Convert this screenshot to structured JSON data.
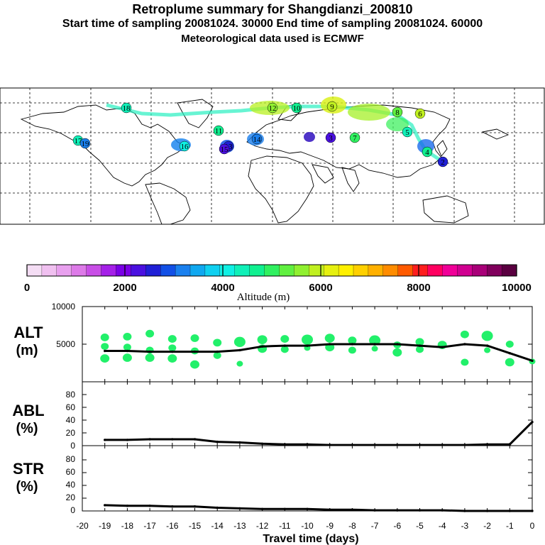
{
  "header": {
    "title": "Retroplume summary for Shangdianzi_200810",
    "sampling": "Start time of sampling 20081024. 30000     End time of sampling 20081024. 60000",
    "met": "Meteorological data used is ECMWF"
  },
  "colorbar": {
    "label": "Altitude (m)",
    "tick_labels": [
      "0",
      "2000",
      "4000",
      "6000",
      "8000",
      "10000"
    ],
    "colors": [
      "#f4ddf4",
      "#f0c0f0",
      "#e8a0ee",
      "#dd7ae8",
      "#c84ee6",
      "#a520e8",
      "#7a00e6",
      "#4a10e0",
      "#2020d6",
      "#1250e6",
      "#1a80ee",
      "#10a8f0",
      "#10d0f0",
      "#10f0e4",
      "#10f0b8",
      "#10f090",
      "#30f060",
      "#60f040",
      "#90f030",
      "#c0f020",
      "#e6f010",
      "#fff000",
      "#ffd000",
      "#ffb000",
      "#ff8c00",
      "#ff5a00",
      "#ff1e1e",
      "#ff0060",
      "#f00098",
      "#d00090",
      "#a80078",
      "#80005c",
      "#5a0040"
    ]
  },
  "chart_data": [
    {
      "type": "scatter",
      "name": "ALT",
      "panel_label": "ALT",
      "panel_unit": "(m)",
      "ylim": [
        0,
        10000
      ],
      "y_tick_labels": [
        "10000",
        "5000"
      ],
      "line": {
        "x": [
          -19,
          -18,
          -17,
          -16,
          -15,
          -14,
          -13,
          -12,
          -11,
          -10,
          -9,
          -8,
          -7,
          -6,
          -5,
          -4,
          -3,
          -2,
          -1,
          0
        ],
        "y": [
          4100,
          4100,
          4000,
          4000,
          4000,
          4000,
          4200,
          4700,
          4800,
          4800,
          5000,
          5000,
          5000,
          5000,
          4800,
          4600,
          5000,
          4800,
          3800,
          2800
        ]
      },
      "points": {
        "x": [
          -19,
          -19,
          -19,
          -18,
          -18,
          -18,
          -17,
          -17,
          -17,
          -16,
          -16,
          -16,
          -15,
          -15,
          -15,
          -14,
          -14,
          -13,
          -13,
          -12,
          -12,
          -11,
          -11,
          -10,
          -10,
          -9,
          -9,
          -8,
          -8,
          -7,
          -7,
          -6,
          -6,
          -5,
          -5,
          -4,
          -3,
          -3,
          -2,
          -2,
          -1,
          -1,
          0
        ],
        "y": [
          5900,
          4700,
          3100,
          6000,
          4600,
          3200,
          6400,
          4200,
          3200,
          5700,
          4500,
          3100,
          5800,
          4100,
          2300,
          5200,
          3500,
          5300,
          2400,
          5600,
          4400,
          5700,
          4300,
          5600,
          4500,
          5800,
          4600,
          5500,
          4200,
          5500,
          4400,
          4900,
          3900,
          5300,
          4300,
          4900,
          6300,
          2600,
          6100,
          4200,
          5000,
          2600,
          2700
        ]
      }
    },
    {
      "type": "line",
      "name": "ABL",
      "panel_label": "ABL",
      "panel_unit": "(%)",
      "ylim": [
        0,
        100
      ],
      "y_tick_labels": [
        "80",
        "60",
        "40",
        "20",
        "0"
      ],
      "x": [
        -19,
        -18,
        -17,
        -16,
        -15,
        -14,
        -13,
        -12,
        -11,
        -10,
        -9,
        -8,
        -7,
        -6,
        -5,
        -4,
        -3,
        -2,
        -1,
        0
      ],
      "y": [
        9,
        9,
        10,
        10,
        10,
        6,
        5,
        3,
        2,
        2,
        1,
        1,
        1,
        1,
        1,
        1,
        1,
        2,
        2,
        37
      ]
    },
    {
      "type": "line",
      "name": "STR",
      "panel_label": "STR",
      "panel_unit": "(%)",
      "ylim": [
        0,
        100
      ],
      "y_tick_labels": [
        "80",
        "60",
        "40",
        "20",
        "0"
      ],
      "x_tick_labels": [
        "-20",
        "-19",
        "-18",
        "-17",
        "-16",
        "-15",
        "-14",
        "-13",
        "-12",
        "-11",
        "-10",
        "-9",
        "-8",
        "-7",
        "-6",
        "-5",
        "-4",
        "-3",
        "-2",
        "-1",
        "0"
      ],
      "xlabel": "Travel time (days)",
      "x": [
        -19,
        -18,
        -17,
        -16,
        -15,
        -14,
        -13,
        -12,
        -11,
        -10,
        -9,
        -8,
        -7,
        -6,
        -5,
        -4,
        -3,
        -2,
        -1,
        0
      ],
      "y": [
        9,
        8,
        8,
        7,
        7,
        5,
        4,
        3,
        3,
        3,
        2,
        2,
        1,
        1,
        1,
        1,
        0,
        0,
        0,
        0
      ]
    }
  ],
  "map": {
    "markers": [
      {
        "label": "2",
        "alt": 2500
      },
      {
        "label": "3",
        "alt": 2400
      },
      {
        "label": "4",
        "alt": 4600
      },
      {
        "label": "5",
        "alt": 4300
      },
      {
        "label": "6",
        "alt": 5800
      },
      {
        "label": "7",
        "alt": 5000
      },
      {
        "label": "8",
        "alt": 5400
      },
      {
        "label": "9",
        "alt": 5900
      },
      {
        "label": "10",
        "alt": 4700
      },
      {
        "label": "11",
        "alt": 4800
      },
      {
        "label": "12",
        "alt": 5600
      },
      {
        "label": "13",
        "alt": 2700
      },
      {
        "label": "14",
        "alt": 3200
      },
      {
        "label": "15",
        "alt": 2200
      },
      {
        "label": "16",
        "alt": 4000
      },
      {
        "label": "17",
        "alt": 4400
      },
      {
        "label": "18",
        "alt": 4300
      },
      {
        "label": "19",
        "alt": 3100
      }
    ]
  }
}
